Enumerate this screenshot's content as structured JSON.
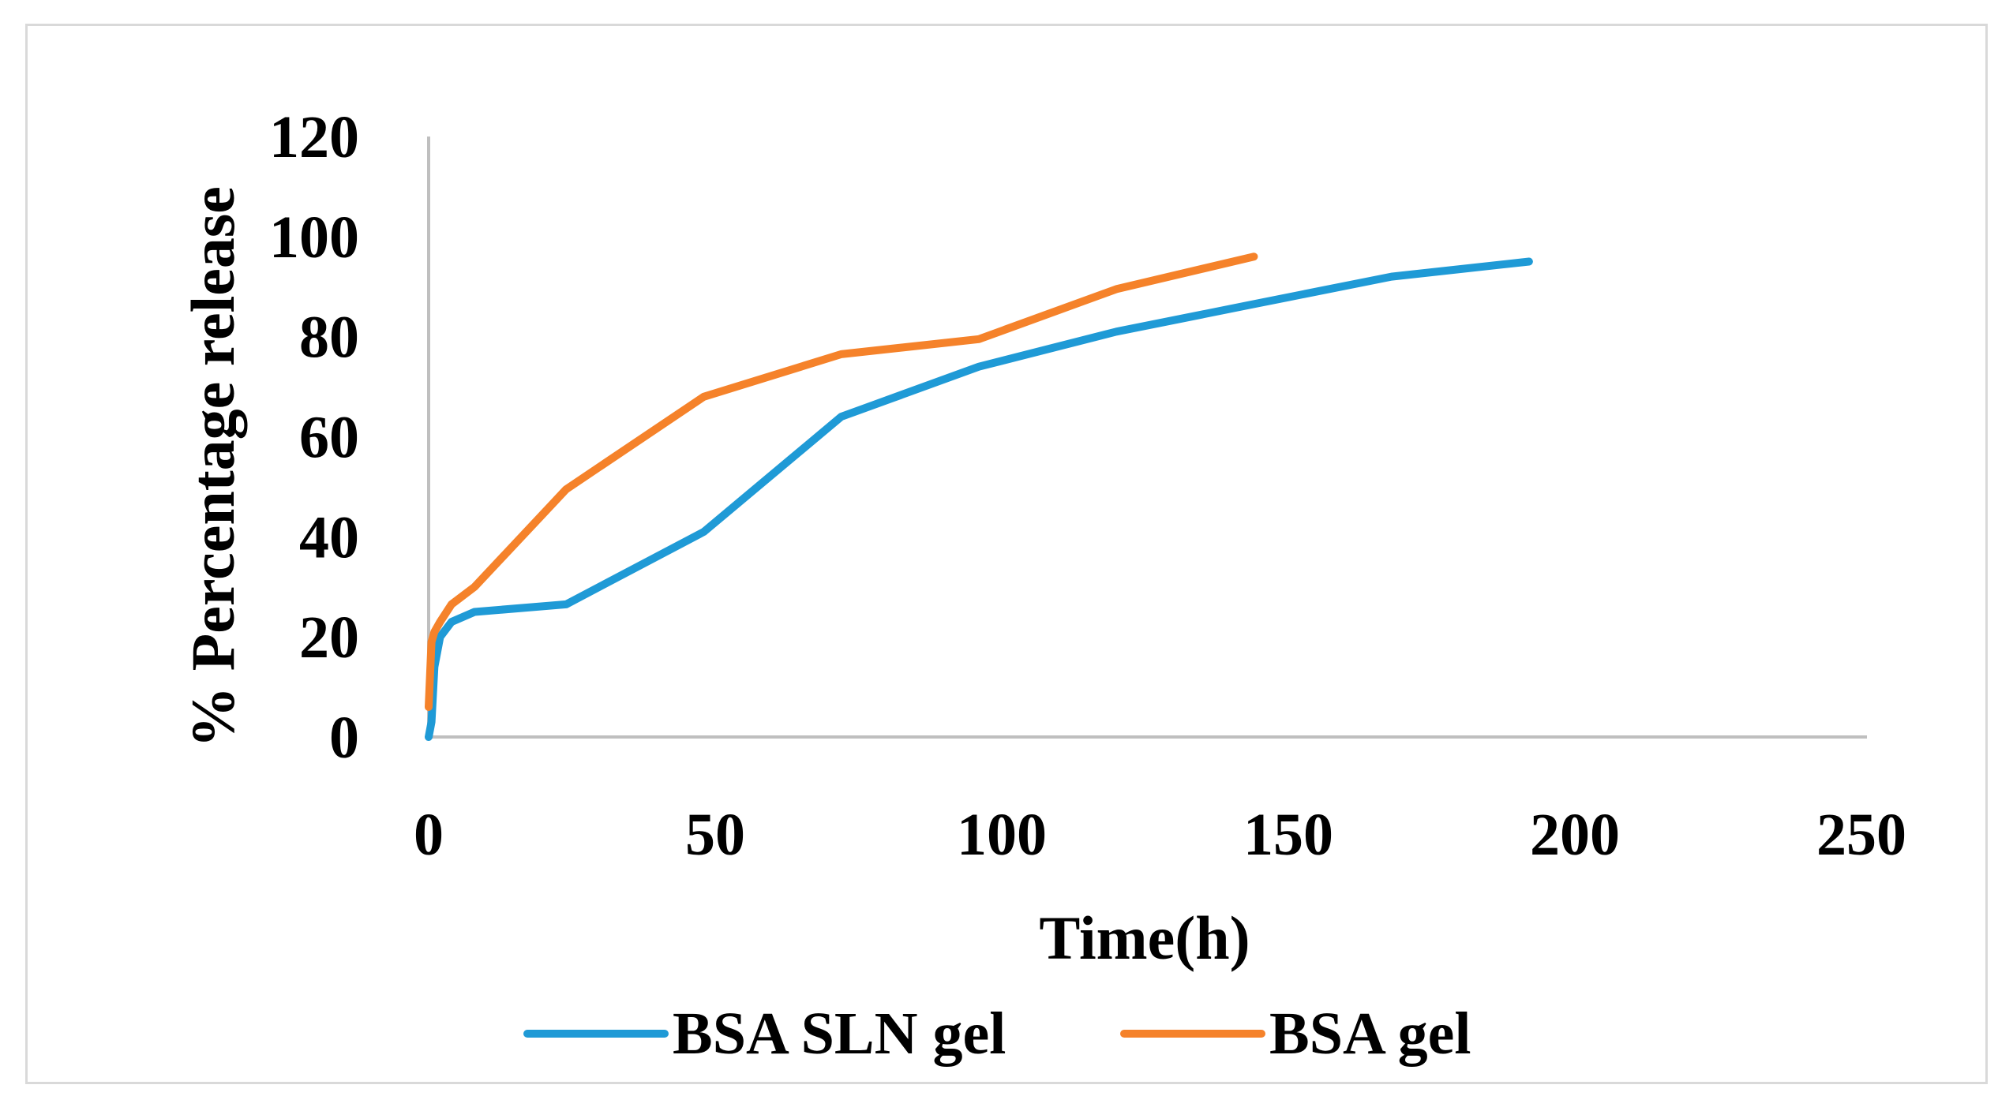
{
  "chart_data": {
    "type": "line",
    "title": "",
    "xlabel": "Time(h)",
    "ylabel": "% Percentage release",
    "xlim": [
      0,
      250
    ],
    "ylim": [
      0,
      120
    ],
    "x_ticks": [
      0,
      50,
      100,
      150,
      200,
      250
    ],
    "y_ticks": [
      0,
      20,
      40,
      60,
      80,
      100,
      120
    ],
    "grid": false,
    "legend_position": "bottom",
    "series": [
      {
        "name": "BSA SLN gel",
        "color": "#1F9AD6",
        "x": [
          0,
          0.5,
          1,
          2,
          4,
          8,
          24,
          48,
          72,
          96,
          120,
          144,
          168,
          192
        ],
        "y": [
          0,
          3,
          14,
          20,
          23,
          25,
          26.5,
          41,
          64,
          74,
          81,
          86.5,
          92,
          95
        ]
      },
      {
        "name": "BSA gel",
        "color": "#F5822A",
        "x": [
          0,
          0.5,
          1,
          2,
          4,
          8,
          24,
          48,
          72,
          96,
          120,
          144
        ],
        "y": [
          6,
          19,
          21,
          23,
          26.5,
          30,
          49.5,
          68,
          76.5,
          79.5,
          89.5,
          96
        ]
      }
    ]
  }
}
